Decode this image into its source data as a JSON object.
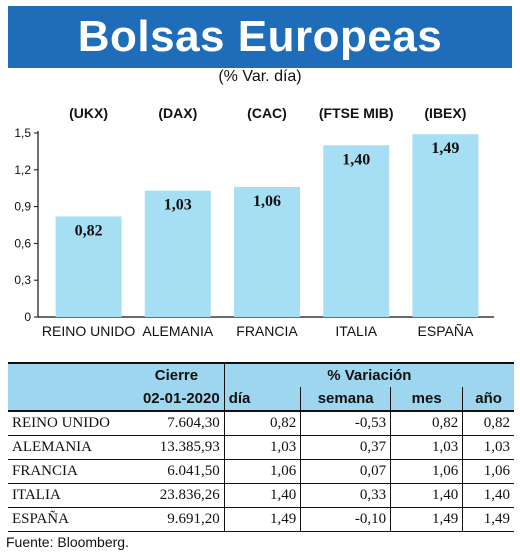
{
  "title": "Bolsas Europeas",
  "subtitle": "(% Var. día)",
  "colors": {
    "banner": "#1f6db8",
    "bar": "#a6def4",
    "table_header": "#9fd6ef"
  },
  "chart_data": {
    "type": "bar",
    "categories": [
      "REINO UNIDO",
      "ALEMANIA",
      "FRANCIA",
      "ITALIA",
      "ESPAÑA"
    ],
    "indices": [
      "(UKX)",
      "(DAX)",
      "(CAC)",
      "(FTSE MIB)",
      "(IBEX)"
    ],
    "values": [
      0.82,
      1.03,
      1.06,
      1.4,
      1.49
    ],
    "value_labels": [
      "0,82",
      "1,03",
      "1,06",
      "1,40",
      "1,49"
    ],
    "yticks": [
      0,
      0.3,
      0.6,
      0.9,
      1.2,
      1.5
    ],
    "ytick_labels": [
      "0",
      "0,3",
      "0,6",
      "0,9",
      "1,2",
      "1,5"
    ],
    "ylim": [
      0,
      1.5
    ],
    "grid": false,
    "legend": "none"
  },
  "table": {
    "header_cierre": "Cierre",
    "header_variacion": "% Variación",
    "date": "02-01-2020",
    "col_dia": "día",
    "col_semana": "semana",
    "col_mes": "mes",
    "col_ano": "año",
    "rows": [
      {
        "name": "REINO UNIDO",
        "cierre": "7.604,30",
        "dia": "0,82",
        "semana": "-0,53",
        "mes": "0,82",
        "ano": "0,82"
      },
      {
        "name": "ALEMANIA",
        "cierre": "13.385,93",
        "dia": "1,03",
        "semana": "0,37",
        "mes": "1,03",
        "ano": "1,03"
      },
      {
        "name": "FRANCIA",
        "cierre": "6.041,50",
        "dia": "1,06",
        "semana": "0,07",
        "mes": "1,06",
        "ano": "1,06"
      },
      {
        "name": "ITALIA",
        "cierre": "23.836,26",
        "dia": "1,40",
        "semana": "0,33",
        "mes": "1,40",
        "ano": "1,40"
      },
      {
        "name": "ESPAÑA",
        "cierre": "9.691,20",
        "dia": "1,49",
        "semana": "-0,10",
        "mes": "1,49",
        "ano": "1,49"
      }
    ]
  },
  "source": "Fuente: Bloomberg."
}
